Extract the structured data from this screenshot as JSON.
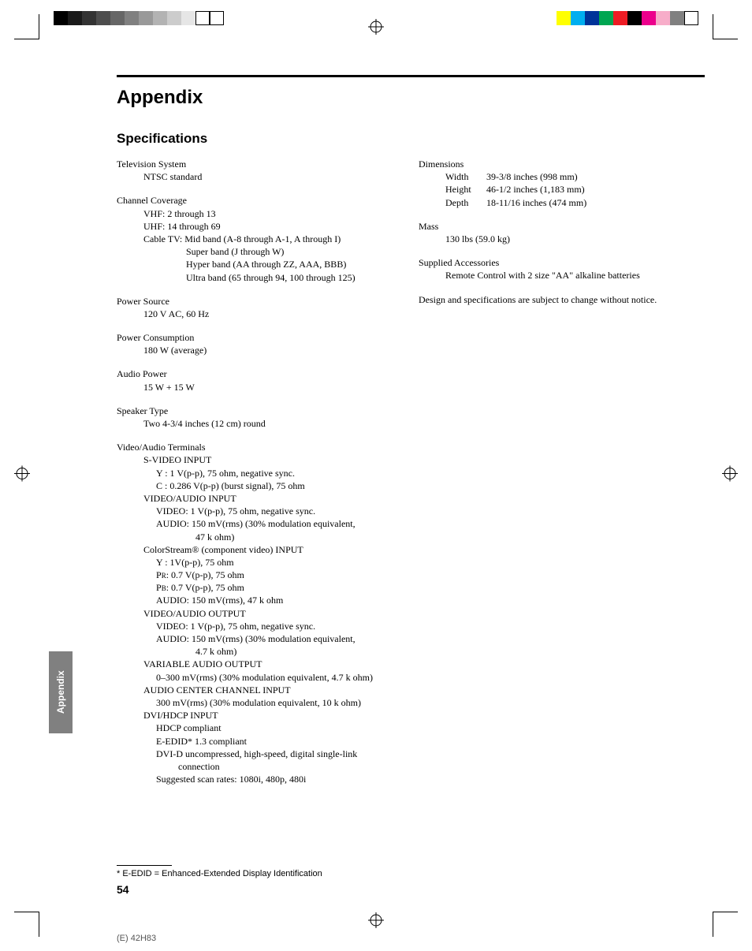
{
  "colorBarLeft": [
    "#000000",
    "#1a1a1a",
    "#333333",
    "#4d4d4d",
    "#666666",
    "#808080",
    "#999999",
    "#b3b3b3",
    "#cccccc",
    "#e6e6e6",
    "#ffffff",
    "#ffffff"
  ],
  "colorBarRight": [
    "#ffff00",
    "#00aeef",
    "#003399",
    "#00a651",
    "#ed1c24",
    "#000000",
    "#ec008c",
    "#f7adc9",
    "#808080",
    "#ffffff"
  ],
  "page": {
    "title": "Appendix",
    "section": "Specifications",
    "sideTab": "Appendix",
    "pageNum": "54",
    "footerCode": "(E) 42H83",
    "footnote": "* E-EDID = Enhanced-Extended Display Identification"
  },
  "left": {
    "tvSystem": {
      "head": "Television System",
      "value": "NTSC standard"
    },
    "channel": {
      "head": "Channel Coverage",
      "vhf": "VHF: 2 through 13",
      "uhf": "UHF: 14 through 69",
      "cable": "Cable TV:",
      "mid": "Mid band (A-8 through A-1, A through I)",
      "super": "Super band (J through W)",
      "hyper": "Hyper band (AA through ZZ, AAA, BBB)",
      "ultra": "Ultra band (65 through 94, 100 through 125)"
    },
    "power": {
      "head": "Power Source",
      "value": "120 V AC, 60 Hz"
    },
    "consumption": {
      "head": "Power Consumption",
      "value": "180 W (average)"
    },
    "audio": {
      "head": "Audio Power",
      "value": "15 W + 15 W"
    },
    "speaker": {
      "head": "Speaker Type",
      "value": "Two 4-3/4 inches (12 cm) round"
    },
    "terminals": {
      "head": "Video/Audio Terminals",
      "svideoHead": "S-VIDEO INPUT",
      "svideoY": "Y : 1 V(p-p), 75 ohm, negative sync.",
      "svideoC": "C : 0.286 V(p-p) (burst signal), 75 ohm",
      "vaInHead": "VIDEO/AUDIO INPUT",
      "vaInVideo": "VIDEO: 1 V(p-p), 75 ohm, negative sync.",
      "vaInAudio1": "AUDIO: 150 mV(rms) (30% modulation equivalent,",
      "vaInAudio2": "47 k ohm)",
      "csHead": "ColorStream® (component video) INPUT",
      "csY": "Y  : 1V(p-p), 75 ohm",
      "csPr1": "P",
      "csPr2": "R",
      "csPr3": ": 0.7 V(p-p), 75 ohm",
      "csPb1": "P",
      "csPb2": "B",
      "csPb3": ": 0.7 V(p-p), 75 ohm",
      "csAudio": "AUDIO: 150 mV(rms), 47 k ohm",
      "vaOutHead": "VIDEO/AUDIO OUTPUT",
      "vaOutVideo": "VIDEO: 1 V(p-p), 75 ohm, negative sync.",
      "vaOutAudio1": "AUDIO: 150 mV(rms) (30% modulation equivalent,",
      "vaOutAudio2": "4.7 k ohm)",
      "varHead": "VARIABLE AUDIO OUTPUT",
      "varVal": "0–300 mV(rms) (30% modulation equivalent, 4.7 k ohm)",
      "accHead": "AUDIO CENTER CHANNEL INPUT",
      "accVal": "300 mV(rms) (30% modulation equivalent, 10 k ohm)",
      "dviHead": "DVI/HDCP INPUT",
      "dvi1": "HDCP compliant",
      "dvi2": "E-EDID* 1.3 compliant",
      "dvi3a": "DVI-D uncompressed, high-speed, digital single-link",
      "dvi3b": "connection",
      "dvi4": "Suggested scan rates: 1080i, 480p, 480i"
    }
  },
  "right": {
    "dim": {
      "head": "Dimensions",
      "wLabel": "Width",
      "wVal": "39-3/8 inches (998 mm)",
      "hLabel": "Height",
      "hVal": "46-1/2 inches (1,183 mm)",
      "dLabel": "Depth",
      "dVal": "18-11/16 inches (474 mm)"
    },
    "mass": {
      "head": "Mass",
      "value": "130 lbs (59.0 kg)"
    },
    "acc": {
      "head": "Supplied Accessories",
      "value": "Remote Control with 2 size \"AA\" alkaline batteries"
    },
    "notice": "Design and specifications are subject to change without notice."
  }
}
